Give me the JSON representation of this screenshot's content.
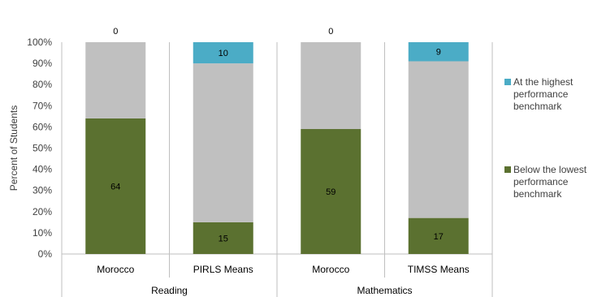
{
  "chart_data": {
    "type": "bar",
    "stacked": true,
    "ylabel": "Percent of Students",
    "ylim": [
      0,
      100
    ],
    "yticks": [
      "0%",
      "10%",
      "20%",
      "30%",
      "40%",
      "50%",
      "60%",
      "70%",
      "80%",
      "90%",
      "100%"
    ],
    "groups": [
      "Reading",
      "Mathematics"
    ],
    "categories": [
      "Morocco",
      "PIRLS Means",
      "Morocco",
      "TIMSS Means"
    ],
    "series": [
      {
        "name": "Below the lowest performance benchmark",
        "values": [
          64,
          15,
          59,
          17
        ],
        "labels": [
          "64",
          "15",
          "59",
          "17"
        ],
        "color": "#5b7130"
      },
      {
        "name": "",
        "values": [
          36,
          75,
          41,
          74
        ],
        "color": "#c0c0c0"
      },
      {
        "name": "At the highest performance benchmark",
        "values": [
          0,
          10,
          0,
          9
        ],
        "labels": [
          "0",
          "10",
          "0",
          "9"
        ],
        "color": "#4bacc6"
      }
    ],
    "legend": {
      "position": "right",
      "entries": [
        {
          "lines": [
            "At the highest",
            "performance",
            "benchmark"
          ],
          "color": "#4bacc6"
        },
        {
          "lines": [
            "Below the lowest",
            "performance",
            "benchmark"
          ],
          "color": "#5b7130"
        }
      ]
    },
    "grid": false
  }
}
